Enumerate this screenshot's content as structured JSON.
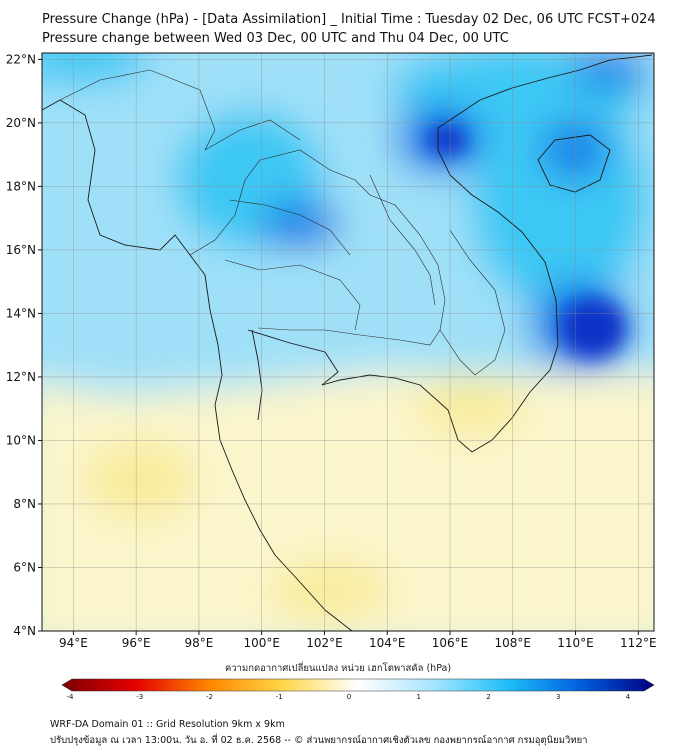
{
  "title": {
    "line1": "Pressure Change (hPa) - [Data Assimilation] _ Initial Time : Tuesday 02 Dec, 06 UTC FCST+024",
    "line2": "Pressure change between Wed 03 Dec, 00 UTC and Thu 04 Dec, 00 UTC"
  },
  "axes": {
    "lon_labels": [
      "94°E",
      "96°E",
      "98°E",
      "100°E",
      "102°E",
      "104°E",
      "106°E",
      "108°E",
      "110°E",
      "112°E"
    ],
    "lon_values": [
      94,
      96,
      98,
      100,
      102,
      104,
      106,
      108,
      110,
      112
    ],
    "lat_labels": [
      "22°N",
      "20°N",
      "18°N",
      "16°N",
      "14°N",
      "12°N",
      "10°N",
      "8°N",
      "6°N",
      "4°N"
    ],
    "lat_values": [
      22,
      20,
      18,
      16,
      14,
      12,
      10,
      8,
      6,
      4
    ],
    "lon_range": [
      93,
      112.5
    ],
    "lat_range": [
      4,
      22.2
    ]
  },
  "colorbar": {
    "label": "ความกดอากาศเปลี่ยนแปลง หน่วย เฮกโตพาสคัล (hPa)",
    "ticks": [
      "-4",
      "-3",
      "-2",
      "-1",
      "0",
      "1",
      "2",
      "3",
      "4"
    ],
    "range": [
      -4,
      4
    ],
    "colors": {
      "neg4": "#7a0000",
      "neg3": "#e60000",
      "neg2": "#ff8800",
      "neg1": "#ffd84a",
      "zero": "#ffffff",
      "pos1": "#a8e6ff",
      "pos2": "#20c0f8",
      "pos3": "#0060e0",
      "pos4": "#000080"
    }
  },
  "field_colors": {
    "yellow_light": "#fbf5cc",
    "yellow": "#f8ec9c",
    "cyan_light": "#9fe0f8",
    "cyan": "#3ec8f4",
    "blue": "#1880e8",
    "deep_blue": "#0a30c8"
  },
  "footer": {
    "line1": "WRF-DA Domain 01 :: Grid Resolution 9km x 9km",
    "line2": "ปรับปรุงข้อมูล ณ เวลา 13:00น. วัน อ. ที่ 02 ธ.ค. 2568 -- © ส่วนพยากรณ์อากาศเชิงตัวเลข กองพยากรณ์อากาศ กรมอุตุนิยมวิทยา"
  }
}
